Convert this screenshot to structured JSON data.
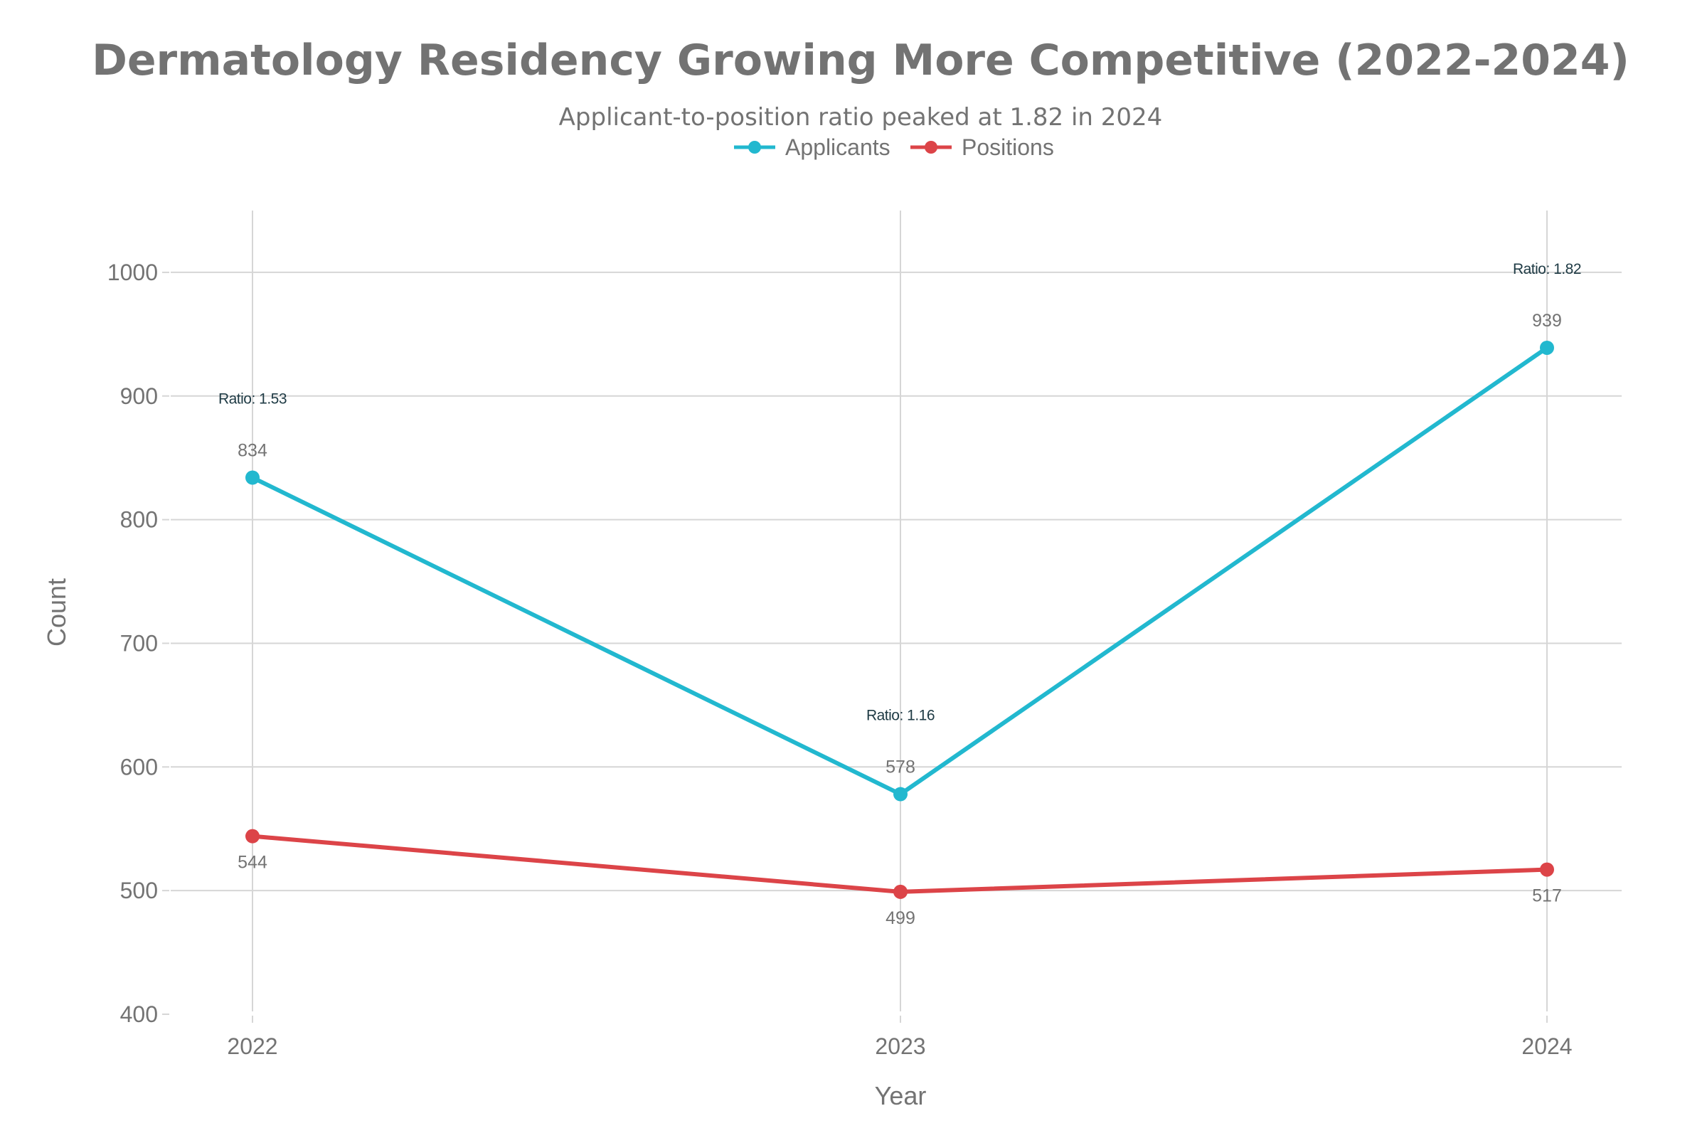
{
  "chart_data": {
    "type": "line",
    "title": "Dermatology Residency Growing More Competitive (2022-2024)",
    "subtitle": "Applicant-to-position ratio peaked at 1.82 in 2024",
    "xlabel": "Year",
    "ylabel": "Count",
    "categories": [
      "2022",
      "2023",
      "2024"
    ],
    "ylim": [
      400,
      1050
    ],
    "yticks": [
      400,
      500,
      600,
      700,
      800,
      900,
      1000
    ],
    "grid": true,
    "legend_position": "top-center",
    "series": [
      {
        "name": "Applicants",
        "color": "#22b8cf",
        "values": [
          834,
          578,
          939
        ],
        "labels": [
          "834",
          "578",
          "939"
        ],
        "label_position": "above"
      },
      {
        "name": "Positions",
        "color": "#dc4448",
        "values": [
          544,
          499,
          517
        ],
        "labels": [
          "544",
          "499",
          "517"
        ],
        "label_position": "below"
      }
    ],
    "annotations": [
      {
        "x": "2022",
        "y": 1.53,
        "text": "Ratio: 1.53"
      },
      {
        "x": "2023",
        "y": 1.16,
        "text": "Ratio: 1.16"
      },
      {
        "x": "2024",
        "y": 1.82,
        "text": "Ratio: 1.82"
      }
    ]
  }
}
